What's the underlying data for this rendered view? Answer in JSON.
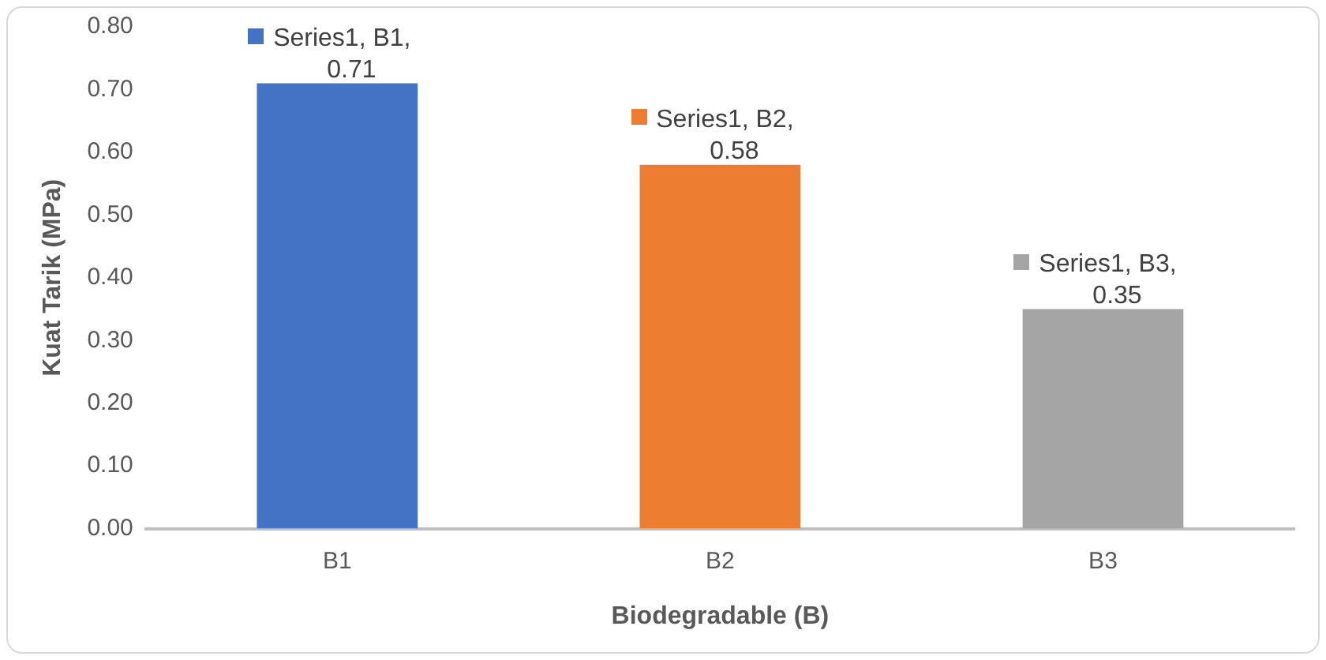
{
  "chart_data": {
    "type": "bar",
    "xlabel": "Biodegradable (B)",
    "ylabel": "Kuat Tarik (MPa)",
    "categories": [
      "B1",
      "B2",
      "B3"
    ],
    "values": [
      0.71,
      0.58,
      0.35
    ],
    "colors": [
      "#4472c4",
      "#ed7d31",
      "#a5a5a5"
    ],
    "value_labels": [
      "Series1, B1, 0.71",
      "Series1, B2, 0.58",
      "Series1, B3, 0.35"
    ],
    "ylim": [
      0,
      0.8
    ],
    "yticks": [
      {
        "value": 0,
        "label": "0.00"
      },
      {
        "value": 0.1,
        "label": "0.10"
      },
      {
        "value": 0.2,
        "label": "0.20"
      },
      {
        "value": 0.3,
        "label": "0.30"
      },
      {
        "value": 0.4,
        "label": "0.40"
      },
      {
        "value": 0.5,
        "label": "0.50"
      },
      {
        "value": 0.6,
        "label": "0.60"
      },
      {
        "value": 0.7,
        "label": "0.70"
      },
      {
        "value": 0.8,
        "label": "0.80"
      }
    ],
    "grid": false,
    "legend": false
  }
}
